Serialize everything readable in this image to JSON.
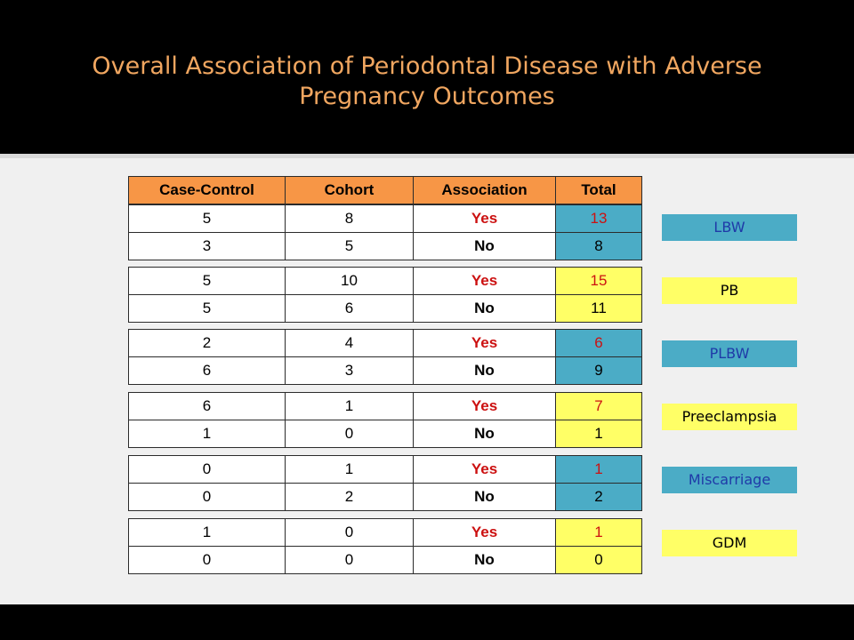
{
  "slide": {
    "title_line1": "Overall Association of Periodontal Disease with Adverse",
    "title_line2": "Pregnancy Outcomes"
  },
  "header": [
    "Case-Control",
    "Cohort",
    "Association",
    "Total"
  ],
  "groups": [
    {
      "label": "LBW",
      "color": "blue",
      "rows": [
        {
          "case_control": "5",
          "cohort": "8",
          "association": "Yes",
          "total": "13"
        },
        {
          "case_control": "3",
          "cohort": "5",
          "association": "No",
          "total": "8"
        }
      ]
    },
    {
      "label": "PB",
      "color": "yellow",
      "rows": [
        {
          "case_control": "5",
          "cohort": "10",
          "association": "Yes",
          "total": "15"
        },
        {
          "case_control": "5",
          "cohort": "6",
          "association": "No",
          "total": "11"
        }
      ]
    },
    {
      "label": "PLBW",
      "color": "blue",
      "rows": [
        {
          "case_control": "2",
          "cohort": "4",
          "association": "Yes",
          "total": "6"
        },
        {
          "case_control": "6",
          "cohort": "3",
          "association": "No",
          "total": "9"
        }
      ]
    },
    {
      "label": "Preeclampsia",
      "color": "yellow",
      "rows": [
        {
          "case_control": "6",
          "cohort": "1",
          "association": "Yes",
          "total": "7"
        },
        {
          "case_control": "1",
          "cohort": "0",
          "association": "No",
          "total": "1"
        }
      ]
    },
    {
      "label": "Miscarriage",
      "color": "blue",
      "rows": [
        {
          "case_control": "0",
          "cohort": "1",
          "association": "Yes",
          "total": "1"
        },
        {
          "case_control": "0",
          "cohort": "2",
          "association": "No",
          "total": "2"
        }
      ]
    },
    {
      "label": "GDM",
      "color": "yellow",
      "rows": [
        {
          "case_control": "1",
          "cohort": "0",
          "association": "Yes",
          "total": "1"
        },
        {
          "case_control": "0",
          "cohort": "0",
          "association": "No",
          "total": "0"
        }
      ]
    }
  ]
}
